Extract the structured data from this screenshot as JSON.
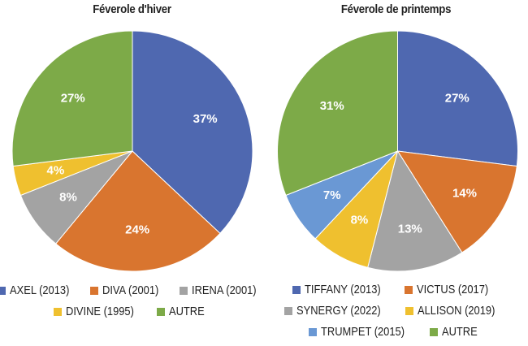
{
  "chart_data": [
    {
      "type": "pie",
      "title": "Féverole d'hiver",
      "categories": [
        "AXEL (2013)",
        "DIVA (2001)",
        "IRENA (2001)",
        "DIVINE (1995)",
        "AUTRE"
      ],
      "values": [
        37,
        24,
        8,
        4,
        27
      ],
      "labels": [
        "37%",
        "24%",
        "8%",
        "4%",
        "27%"
      ],
      "colors": [
        "#4F68B0",
        "#D9752F",
        "#A3A3A3",
        "#EFC02F",
        "#7DAA48"
      ],
      "legend_position": "bottom",
      "start_angle": "12 o'clock, clockwise"
    },
    {
      "type": "pie",
      "title": "Féverole de printemps",
      "categories": [
        "TIFFANY (2013)",
        "VICTUS (2017)",
        "SYNERGY (2022)",
        "ALLISON (2019)",
        "TRUMPET (2015)",
        "AUTRE"
      ],
      "values": [
        27,
        14,
        13,
        8,
        7,
        31
      ],
      "labels": [
        "27%",
        "14%",
        "13%",
        "8%",
        "7%",
        "31%"
      ],
      "colors": [
        "#4F68B0",
        "#D9752F",
        "#A3A3A3",
        "#EFC02F",
        "#6A98D4",
        "#7DAA48"
      ],
      "legend_position": "bottom",
      "start_angle": "12 o'clock, clockwise"
    }
  ],
  "left": {
    "title": "Féverole d'hiver",
    "legend": [
      [
        "AXEL (2013)",
        "DIVA (2001)",
        "IRENA (2001)"
      ],
      [
        "DIVINE (1995)",
        "AUTRE"
      ]
    ]
  },
  "right": {
    "title": "Féverole de printemps",
    "legend": [
      [
        "TIFFANY (2013)",
        "VICTUS (2017)"
      ],
      [
        "SYNERGY (2022)",
        "ALLISON (2019)"
      ],
      [
        "TRUMPET (2015)",
        "AUTRE"
      ]
    ]
  }
}
